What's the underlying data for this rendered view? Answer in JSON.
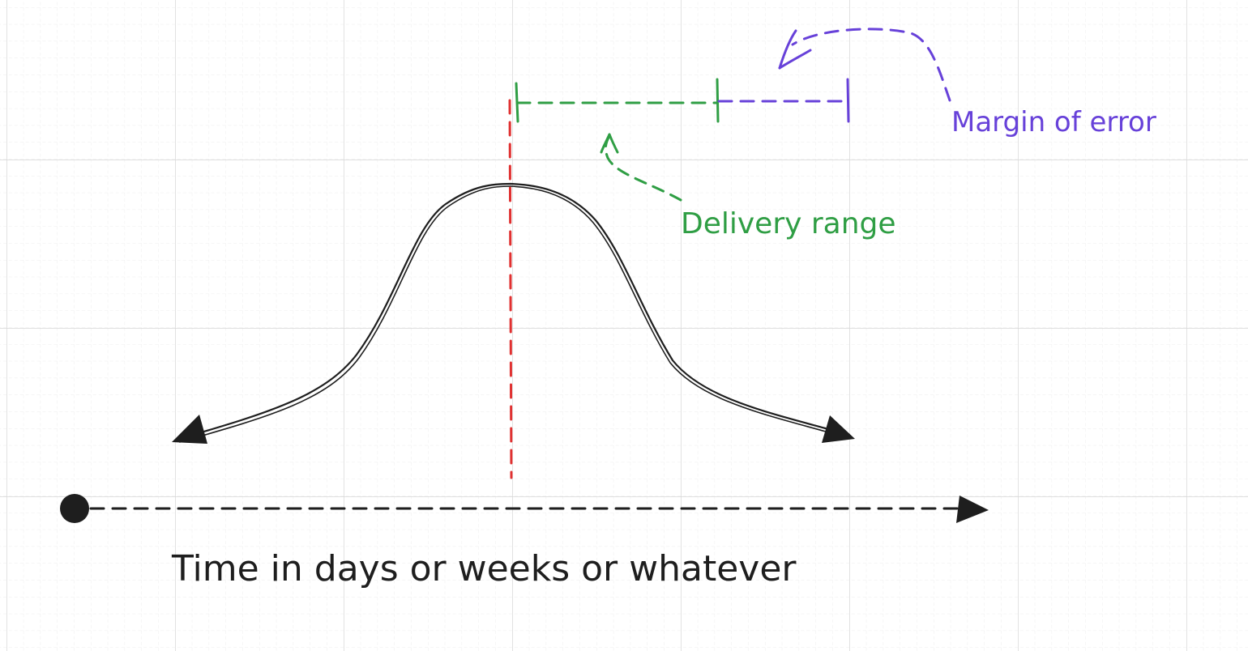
{
  "labels": {
    "time_axis": "Time in days or weeks or whatever",
    "delivery_range": "Delivery range",
    "margin_of_error": "Margin of error"
  },
  "colors": {
    "grid_major": "#d6d6d6",
    "grid_minor": "#ececec",
    "curve": "#1e1e1e",
    "axis": "#1e1e1e",
    "center_line": "#e03131",
    "delivery_range": "#2f9e44",
    "margin_of_error": "#6741d9"
  }
}
